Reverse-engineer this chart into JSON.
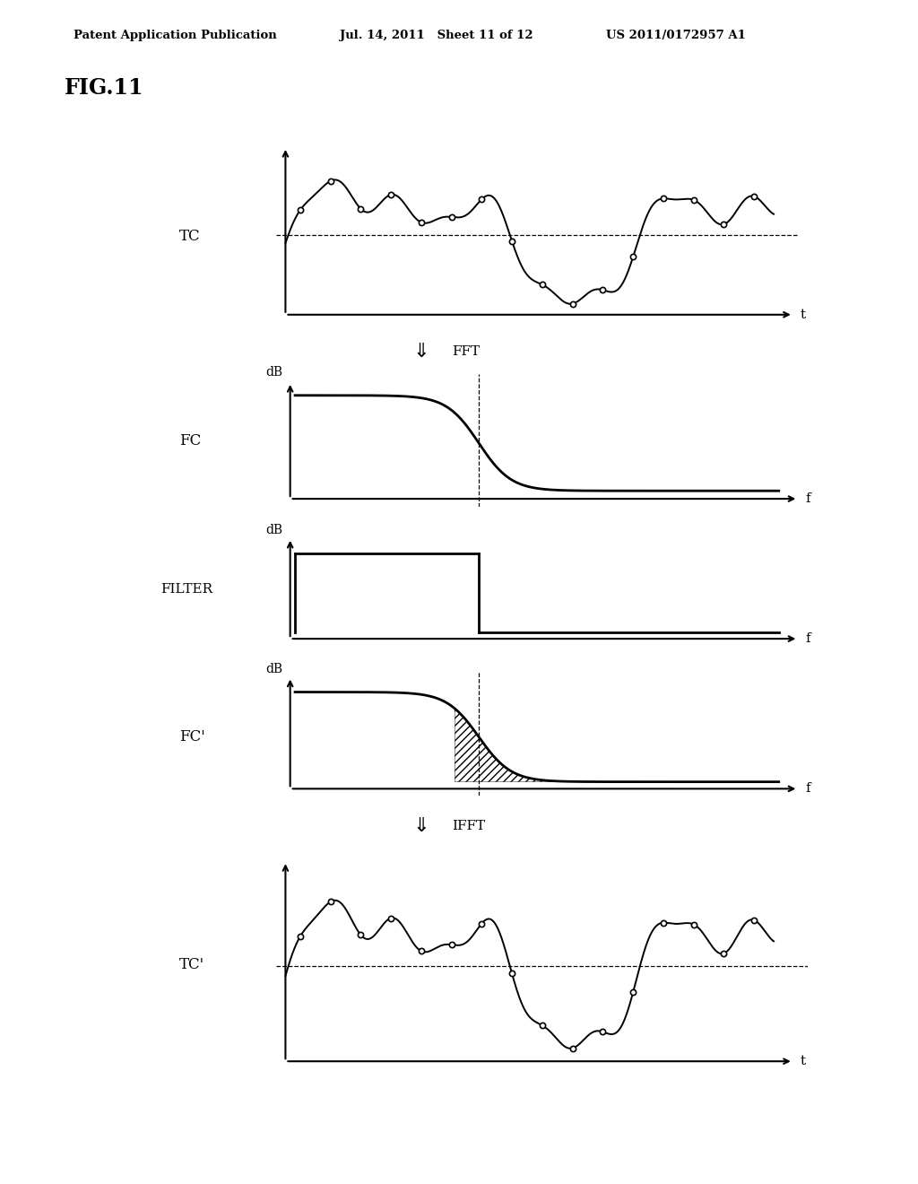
{
  "header_left": "Patent Application Publication",
  "header_mid": "Jul. 14, 2011   Sheet 11 of 12",
  "header_right": "US 2011/0172957 A1",
  "fig_label": "FIG.11",
  "bg_color": "#ffffff",
  "text_color": "#000000",
  "label_TC": "TC",
  "label_FC": "FC",
  "label_FILTER": "FILTER",
  "label_FCP": "FC'",
  "label_TCP": "TC'",
  "axis_t": "t",
  "axis_f": "f",
  "axis_dB": "dB",
  "arrow_FFT": "FFT",
  "arrow_IFFT": "IFFT"
}
